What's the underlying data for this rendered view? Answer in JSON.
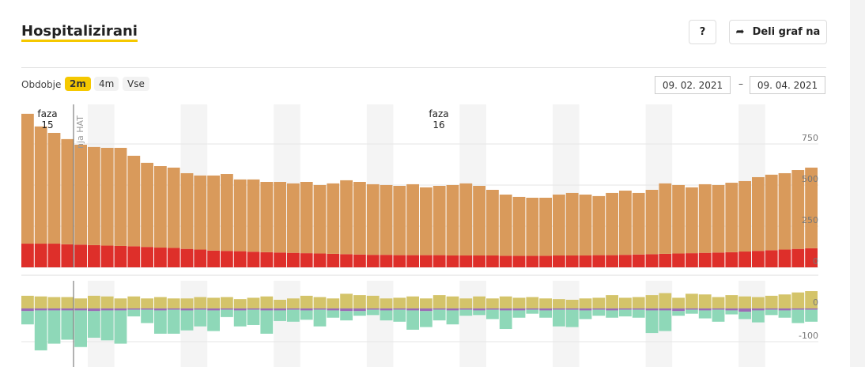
{
  "header": {
    "title": "Hospitalizirani",
    "help": "?",
    "share": "Deli graf na"
  },
  "controls": {
    "period_label": "Obdobje",
    "periods": [
      "2m",
      "4m",
      "Vse"
    ],
    "date_from": "09. 02. 2021",
    "date_sep": "–",
    "date_to": "09. 04. 2021"
  },
  "chart_data": [
    {
      "type": "stacked-bar",
      "annotations": [
        "faza\n15",
        "faza\n16",
        "nja HAT"
      ],
      "ylim": [
        0,
        990
      ],
      "yticks": [
        0,
        250,
        500,
        750
      ],
      "grid": true,
      "series": [
        {
          "color": "#de2f2a",
          "values": [
            144,
            144,
            144,
            140,
            138,
            135,
            132,
            130,
            128,
            124,
            120,
            118,
            112,
            108,
            102,
            100,
            98,
            95,
            92,
            90,
            88,
            86,
            84,
            82,
            80,
            78,
            76,
            76,
            74,
            74,
            74,
            74,
            72,
            72,
            72,
            72,
            70,
            70,
            70,
            70,
            72,
            72,
            72,
            74,
            74,
            76,
            78,
            80,
            82,
            84,
            86,
            88,
            90,
            92,
            96,
            100,
            104,
            108,
            112,
            116
          ]
        },
        {
          "color": "#d99a5b",
          "values": [
            789,
            712,
            673,
            639,
            607,
            596,
            594,
            596,
            550,
            511,
            495,
            488,
            460,
            450,
            456,
            467,
            436,
            439,
            427,
            429,
            422,
            433,
            416,
            428,
            449,
            441,
            429,
            424,
            421,
            431,
            412,
            421,
            428,
            438,
            423,
            399,
            372,
            358,
            353,
            353,
            370,
            380,
            370,
            359,
            378,
            390,
            374,
            391,
            428,
            416,
            400,
            417,
            410,
            422,
            428,
            448,
            459,
            464,
            479,
            490
          ]
        }
      ]
    },
    {
      "type": "diverging-bar",
      "ylim": [
        -176,
        83
      ],
      "yticks": [
        0,
        -100
      ],
      "grid": true,
      "series": [
        {
          "color": "#d4c46a",
          "values": [
            38,
            36,
            34,
            34,
            30,
            38,
            36,
            30,
            36,
            30,
            34,
            30,
            30,
            34,
            32,
            34,
            28,
            32,
            36,
            26,
            30,
            38,
            34,
            30,
            44,
            40,
            38,
            30,
            32,
            36,
            30,
            40,
            36,
            30,
            36,
            30,
            36,
            32,
            34,
            30,
            28,
            26,
            30,
            32,
            40,
            32,
            34,
            40,
            46,
            32,
            44,
            42,
            34,
            40,
            36,
            34,
            38,
            42,
            48,
            52
          ]
        },
        {
          "color": "#9b6bb5",
          "values": [
            -8,
            -6,
            -6,
            -6,
            -6,
            -8,
            -6,
            -6,
            -4,
            -4,
            -6,
            -4,
            -6,
            -4,
            -6,
            -4,
            -6,
            -4,
            -6,
            -6,
            -4,
            -6,
            -4,
            -6,
            -8,
            -8,
            -4,
            -6,
            -4,
            -6,
            -8,
            -4,
            -6,
            -4,
            -6,
            -4,
            -6,
            -6,
            -4,
            -6,
            -4,
            -4,
            -6,
            -4,
            -6,
            -4,
            -4,
            -6,
            -6,
            -8,
            -4,
            -6,
            -4,
            -6,
            -10,
            -6,
            -4,
            -6,
            -4,
            -4
          ]
        },
        {
          "color": "#8ed8b8",
          "values": [
            -40,
            -120,
            -100,
            -88,
            -110,
            -80,
            -90,
            -100,
            -20,
            -40,
            -70,
            -72,
            -60,
            -50,
            -62,
            -22,
            -48,
            -46,
            -70,
            -32,
            -36,
            -28,
            -50,
            -22,
            -28,
            -14,
            -16,
            -30,
            -36,
            -58,
            -48,
            -32,
            -42,
            -18,
            -14,
            -28,
            -56,
            -22,
            -12,
            -22,
            -50,
            -52,
            -26,
            -18,
            -22,
            -20,
            -24,
            -68,
            -62,
            -14,
            -12,
            -24,
            -36,
            -12,
            -22,
            -36,
            -16,
            -22,
            -40,
            -36
          ]
        }
      ]
    }
  ]
}
